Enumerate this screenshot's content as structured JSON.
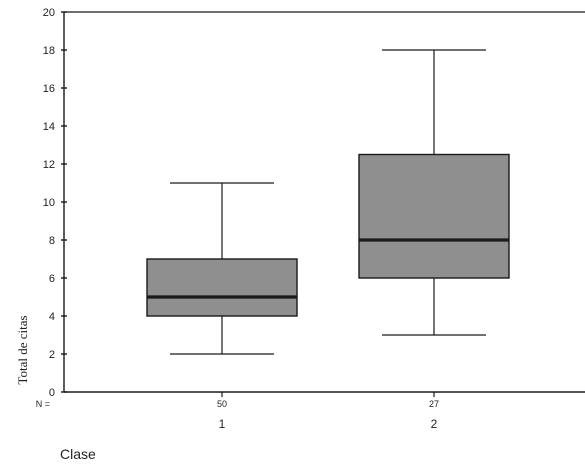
{
  "chart_data": {
    "type": "boxplot",
    "ylabel": "Total de citas",
    "xlabel": "Clase",
    "n_prefix": "N =",
    "ylim": [
      0,
      20
    ],
    "yticks": [
      0,
      2,
      4,
      6,
      8,
      10,
      12,
      14,
      16,
      18,
      20
    ],
    "categories": [
      "1",
      "2"
    ],
    "n": [
      "50",
      "27"
    ],
    "boxes": [
      {
        "category": "1",
        "whisker_low": 2,
        "q1": 4,
        "median": 5,
        "q3": 7,
        "whisker_high": 11
      },
      {
        "category": "2",
        "whisker_low": 3,
        "q1": 6,
        "median": 8,
        "q3": 12.5,
        "whisker_high": 18
      }
    ],
    "colors": {
      "box_fill": "#8f8f8f",
      "median": "#1a1a1a",
      "stroke": "#1a1a1a"
    },
    "grid": false
  }
}
